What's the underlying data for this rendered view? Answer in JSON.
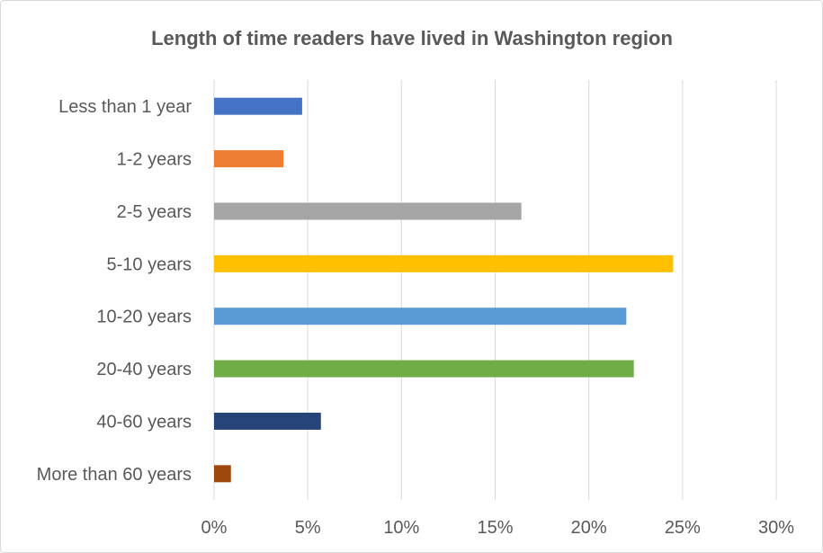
{
  "chart_data": {
    "type": "bar",
    "orientation": "horizontal",
    "title": "Length of time readers have lived in Washington region",
    "xlabel": "",
    "ylabel": "",
    "categories": [
      "Less than 1 year",
      "1-2 years",
      "2-5 years",
      "5-10 years",
      "10-20 years",
      "20-40 years",
      "40-60 years",
      "More than 60 years"
    ],
    "values": [
      4.7,
      3.7,
      16.4,
      24.5,
      22.0,
      22.4,
      5.7,
      0.9
    ],
    "colors": [
      "#4472c4",
      "#ed7d31",
      "#a5a5a5",
      "#ffc000",
      "#5b9bd5",
      "#70ad47",
      "#264478",
      "#9e480e"
    ],
    "xlim": [
      0,
      30
    ],
    "x_ticks": [
      "0%",
      "5%",
      "10%",
      "15%",
      "20%",
      "25%",
      "30%"
    ],
    "x_tick_values": [
      0,
      5,
      10,
      15,
      20,
      25,
      30
    ],
    "grid": true,
    "legend": "none"
  }
}
